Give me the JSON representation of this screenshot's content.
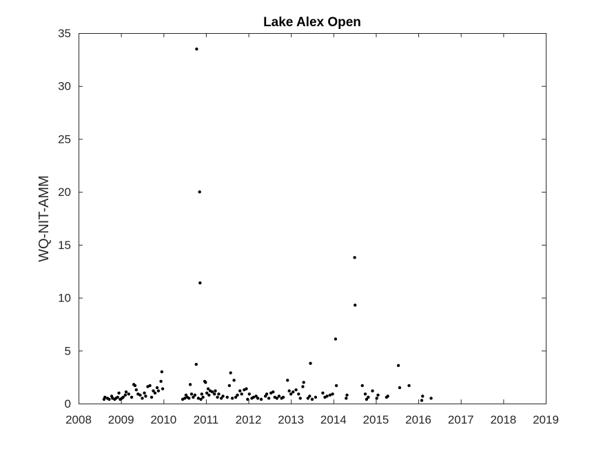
{
  "chart_data": {
    "type": "scatter",
    "title": "Lake Alex Open",
    "xlabel": "",
    "ylabel": "WQ-NIT-AMM",
    "xlim": [
      2008,
      2019
    ],
    "ylim": [
      0,
      35
    ],
    "xticks": [
      2008,
      2009,
      2010,
      2011,
      2012,
      2013,
      2014,
      2015,
      2016,
      2017,
      2018,
      2019
    ],
    "yticks": [
      0,
      5,
      10,
      15,
      20,
      25,
      30,
      35
    ],
    "grid": false,
    "marker_color": "#000000",
    "x_unit": "year",
    "points": [
      [
        2008.6,
        0.4
      ],
      [
        2008.62,
        0.6
      ],
      [
        2008.68,
        0.5
      ],
      [
        2008.72,
        0.4
      ],
      [
        2008.78,
        0.7
      ],
      [
        2008.8,
        0.5
      ],
      [
        2008.85,
        0.4
      ],
      [
        2008.88,
        0.5
      ],
      [
        2008.92,
        0.6
      ],
      [
        2008.95,
        1.0
      ],
      [
        2008.98,
        0.4
      ],
      [
        2009.02,
        0.5
      ],
      [
        2009.05,
        0.6
      ],
      [
        2009.1,
        0.8
      ],
      [
        2009.12,
        1.1
      ],
      [
        2009.18,
        0.9
      ],
      [
        2009.25,
        0.6
      ],
      [
        2009.3,
        1.8
      ],
      [
        2009.33,
        1.7
      ],
      [
        2009.36,
        1.3
      ],
      [
        2009.4,
        0.9
      ],
      [
        2009.45,
        0.8
      ],
      [
        2009.5,
        0.5
      ],
      [
        2009.55,
        1.0
      ],
      [
        2009.58,
        0.7
      ],
      [
        2009.63,
        1.6
      ],
      [
        2009.68,
        1.7
      ],
      [
        2009.72,
        0.6
      ],
      [
        2009.76,
        1.2
      ],
      [
        2009.8,
        1.0
      ],
      [
        2009.85,
        1.5
      ],
      [
        2009.88,
        1.2
      ],
      [
        2009.94,
        2.1
      ],
      [
        2009.96,
        3.0
      ],
      [
        2009.98,
        1.4
      ],
      [
        2010.45,
        0.4
      ],
      [
        2010.5,
        0.5
      ],
      [
        2010.53,
        0.8
      ],
      [
        2010.56,
        0.6
      ],
      [
        2010.6,
        0.5
      ],
      [
        2010.63,
        1.8
      ],
      [
        2010.66,
        0.9
      ],
      [
        2010.7,
        0.6
      ],
      [
        2010.74,
        0.8
      ],
      [
        2010.77,
        3.7
      ],
      [
        2010.78,
        33.5
      ],
      [
        2010.82,
        0.5
      ],
      [
        2010.85,
        20.0
      ],
      [
        2010.86,
        11.4
      ],
      [
        2010.88,
        0.4
      ],
      [
        2010.9,
        0.9
      ],
      [
        2010.93,
        0.6
      ],
      [
        2010.97,
        2.1
      ],
      [
        2010.99,
        2.0
      ],
      [
        2011.02,
        1.0
      ],
      [
        2011.05,
        1.4
      ],
      [
        2011.07,
        0.8
      ],
      [
        2011.1,
        1.2
      ],
      [
        2011.15,
        1.1
      ],
      [
        2011.2,
        0.9
      ],
      [
        2011.22,
        1.2
      ],
      [
        2011.27,
        0.6
      ],
      [
        2011.3,
        0.9
      ],
      [
        2011.36,
        0.5
      ],
      [
        2011.4,
        0.7
      ],
      [
        2011.5,
        0.6
      ],
      [
        2011.55,
        1.7
      ],
      [
        2011.58,
        2.9
      ],
      [
        2011.62,
        0.5
      ],
      [
        2011.66,
        2.2
      ],
      [
        2011.7,
        0.6
      ],
      [
        2011.74,
        0.8
      ],
      [
        2011.8,
        1.2
      ],
      [
        2011.84,
        0.9
      ],
      [
        2011.9,
        1.3
      ],
      [
        2011.95,
        1.4
      ],
      [
        2011.98,
        0.4
      ],
      [
        2012.02,
        0.9
      ],
      [
        2012.08,
        0.5
      ],
      [
        2012.12,
        0.6
      ],
      [
        2012.18,
        0.7
      ],
      [
        2012.22,
        0.5
      ],
      [
        2012.3,
        0.4
      ],
      [
        2012.4,
        0.7
      ],
      [
        2012.43,
        0.9
      ],
      [
        2012.48,
        0.5
      ],
      [
        2012.53,
        1.0
      ],
      [
        2012.58,
        1.1
      ],
      [
        2012.62,
        0.6
      ],
      [
        2012.67,
        0.5
      ],
      [
        2012.72,
        0.7
      ],
      [
        2012.78,
        0.5
      ],
      [
        2012.82,
        0.6
      ],
      [
        2012.92,
        2.2
      ],
      [
        2012.96,
        1.2
      ],
      [
        2013.0,
        0.9
      ],
      [
        2013.05,
        1.1
      ],
      [
        2013.12,
        1.3
      ],
      [
        2013.18,
        0.9
      ],
      [
        2013.22,
        0.5
      ],
      [
        2013.28,
        1.6
      ],
      [
        2013.3,
        2.0
      ],
      [
        2013.4,
        0.5
      ],
      [
        2013.44,
        0.7
      ],
      [
        2013.46,
        3.8
      ],
      [
        2013.5,
        0.4
      ],
      [
        2013.58,
        0.6
      ],
      [
        2013.75,
        1.0
      ],
      [
        2013.8,
        0.6
      ],
      [
        2013.85,
        0.7
      ],
      [
        2013.92,
        0.8
      ],
      [
        2013.98,
        0.9
      ],
      [
        2014.05,
        6.1
      ],
      [
        2014.07,
        1.7
      ],
      [
        2014.3,
        0.5
      ],
      [
        2014.32,
        0.8
      ],
      [
        2014.5,
        13.8
      ],
      [
        2014.51,
        9.3
      ],
      [
        2014.68,
        1.7
      ],
      [
        2014.75,
        0.9
      ],
      [
        2014.78,
        0.4
      ],
      [
        2014.82,
        0.6
      ],
      [
        2014.92,
        1.2
      ],
      [
        2015.02,
        0.5
      ],
      [
        2015.05,
        0.8
      ],
      [
        2015.25,
        0.6
      ],
      [
        2015.28,
        0.7
      ],
      [
        2015.53,
        3.6
      ],
      [
        2015.56,
        1.5
      ],
      [
        2015.78,
        1.7
      ],
      [
        2016.08,
        0.3
      ],
      [
        2016.1,
        0.7
      ],
      [
        2016.3,
        0.5
      ]
    ]
  }
}
